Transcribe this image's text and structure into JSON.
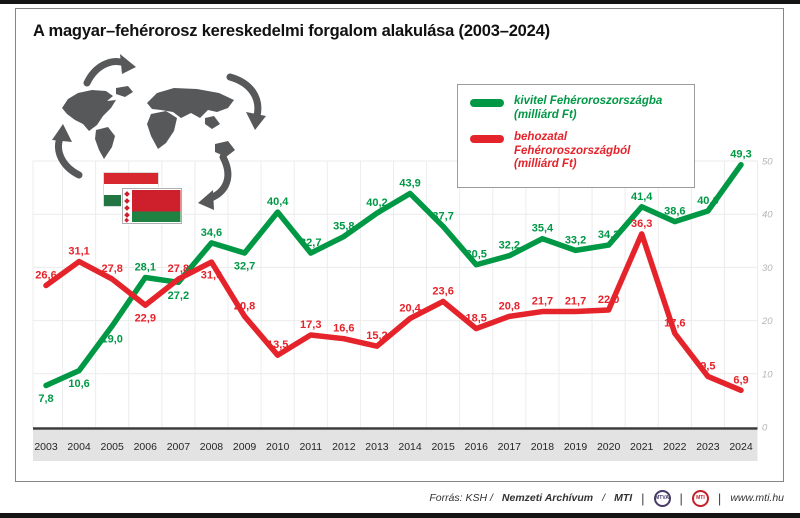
{
  "page": {
    "title": "A magyar–fehérorosz kereskedelmi forgalom alakulása (2003–2024)"
  },
  "legend": {
    "items": [
      {
        "label": "kivitel Fehéroroszországba",
        "sub": "(milliárd Ft)",
        "color": "#009845"
      },
      {
        "label": "behozatal Fehéroroszországból",
        "sub": "(milliárd Ft)",
        "color": "#e5232b"
      }
    ]
  },
  "chart_data": {
    "type": "line",
    "title": "A magyar–fehérorosz kereskedelmi forgalom alakulása (2003–2024)",
    "x": [
      2003,
      2004,
      2005,
      2006,
      2007,
      2008,
      2009,
      2010,
      2011,
      2012,
      2013,
      2014,
      2015,
      2016,
      2017,
      2018,
      2019,
      2020,
      2021,
      2022,
      2023,
      2024
    ],
    "series": [
      {
        "name": "kivitel Fehéroroszországba (milliárd Ft)",
        "color": "#009845",
        "values": [
          7.8,
          10.6,
          19.0,
          28.1,
          27.2,
          34.6,
          32.7,
          40.4,
          32.7,
          35.8,
          40.2,
          43.9,
          37.7,
          30.5,
          32.2,
          35.4,
          33.2,
          34.2,
          41.4,
          38.6,
          40.6,
          49.3
        ]
      },
      {
        "name": "behozatal Fehéroroszországból (milliárd Ft)",
        "color": "#e5232b",
        "values": [
          26.6,
          31.1,
          27.8,
          22.9,
          27.8,
          31.0,
          20.8,
          13.5,
          17.3,
          16.6,
          15.2,
          20.4,
          23.6,
          18.5,
          20.8,
          21.7,
          21.7,
          22.0,
          36.3,
          17.6,
          9.5,
          6.9
        ]
      }
    ],
    "ylim": [
      0,
      50
    ],
    "yticks": [
      0,
      10,
      20,
      30,
      40,
      50
    ],
    "grid": true,
    "legend_position": "top-right",
    "value_labels": true,
    "decimal_separator": ","
  },
  "footer": {
    "source_prefix": "Forrás: KSH /",
    "source_bold1": "Nemzeti Archívum",
    "source_sep": "/",
    "source_bold2": "MTI",
    "logo1": "MTVA",
    "logo2": "MTI",
    "url": "www.mti.hu"
  }
}
